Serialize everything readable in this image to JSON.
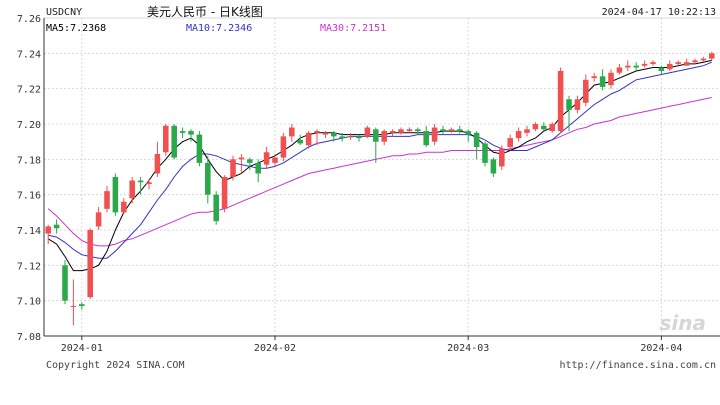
{
  "header": {
    "symbol": "USDCNY",
    "title": "美元人民币 - 日K线图",
    "datetime": "2024-04-17 10:22:13"
  },
  "legend": {
    "ma5": "MA5:7.2368",
    "ma10": "MA10:7.2346",
    "ma30": "MA30:7.2151"
  },
  "footer": {
    "copyright": "Copyright 2024 SINA.COM",
    "url": "http://finance.sina.com.cn",
    "watermark": "sina"
  },
  "colors": {
    "up": "#f05050",
    "down": "#2aa84a",
    "ma5": "#000000",
    "ma10": "#3333cc",
    "ma30": "#cc33cc",
    "grid": "#d8d8d8",
    "axis": "#333333"
  },
  "chart_data": {
    "type": "candlestick",
    "ylim": [
      7.08,
      7.26
    ],
    "yticks": [
      "7.08",
      "7.10",
      "7.12",
      "7.14",
      "7.16",
      "7.18",
      "7.20",
      "7.22",
      "7.24",
      "7.26"
    ],
    "xticks": [
      {
        "label": "2024-01",
        "index": 4
      },
      {
        "label": "2024-02",
        "index": 27
      },
      {
        "label": "2024-03",
        "index": 50
      },
      {
        "label": "2024-04",
        "index": 73
      }
    ],
    "candles": [
      [
        7.138,
        7.142,
        7.143,
        7.132
      ],
      [
        7.143,
        7.141,
        7.146,
        7.138
      ],
      [
        7.12,
        7.1,
        7.123,
        7.098
      ],
      [
        7.097,
        7.097,
        7.112,
        7.086
      ],
      [
        7.098,
        7.097,
        7.099,
        7.095
      ],
      [
        7.102,
        7.14,
        7.141,
        7.101
      ],
      [
        7.142,
        7.15,
        7.153,
        7.14
      ],
      [
        7.152,
        7.162,
        7.165,
        7.15
      ],
      [
        7.17,
        7.15,
        7.172,
        7.148
      ],
      [
        7.15,
        7.156,
        7.158,
        7.149
      ],
      [
        7.158,
        7.168,
        7.17,
        7.155
      ],
      [
        7.168,
        7.167,
        7.17,
        7.16
      ],
      [
        7.166,
        7.167,
        7.169,
        7.163
      ],
      [
        7.172,
        7.183,
        7.19,
        7.17
      ],
      [
        7.184,
        7.199,
        7.2,
        7.182
      ],
      [
        7.199,
        7.181,
        7.2,
        7.18
      ],
      [
        7.196,
        7.195,
        7.198,
        7.192
      ],
      [
        7.196,
        7.194,
        7.197,
        7.19
      ],
      [
        7.194,
        7.178,
        7.196,
        7.176
      ],
      [
        7.178,
        7.16,
        7.182,
        7.155
      ],
      [
        7.16,
        7.145,
        7.162,
        7.143
      ],
      [
        7.152,
        7.17,
        7.171,
        7.15
      ],
      [
        7.17,
        7.18,
        7.182,
        7.168
      ],
      [
        7.18,
        7.181,
        7.183,
        7.172
      ],
      [
        7.18,
        7.178,
        7.181,
        7.174
      ],
      [
        7.178,
        7.172,
        7.18,
        7.167
      ],
      [
        7.177,
        7.184,
        7.187,
        7.175
      ],
      [
        7.178,
        7.181,
        7.183,
        7.176
      ],
      [
        7.181,
        7.193,
        7.195,
        7.179
      ],
      [
        7.193,
        7.198,
        7.2,
        7.19
      ],
      [
        7.191,
        7.189,
        7.194,
        7.188
      ],
      [
        7.188,
        7.195,
        7.196,
        7.186
      ],
      [
        7.195,
        7.196,
        7.197,
        7.188
      ],
      [
        7.194,
        7.195,
        7.196,
        7.192
      ],
      [
        7.195,
        7.193,
        7.196,
        7.19
      ],
      [
        7.193,
        7.192,
        7.195,
        7.19
      ],
      [
        7.193,
        7.193,
        7.195,
        7.191
      ],
      [
        7.193,
        7.192,
        7.194,
        7.19
      ],
      [
        7.193,
        7.198,
        7.199,
        7.192
      ],
      [
        7.197,
        7.19,
        7.198,
        7.178
      ],
      [
        7.19,
        7.196,
        7.197,
        7.188
      ],
      [
        7.195,
        7.196,
        7.197,
        7.193
      ],
      [
        7.195,
        7.197,
        7.198,
        7.194
      ],
      [
        7.196,
        7.197,
        7.198,
        7.195
      ],
      [
        7.197,
        7.196,
        7.198,
        7.194
      ],
      [
        7.196,
        7.188,
        7.199,
        7.187
      ],
      [
        7.19,
        7.198,
        7.2,
        7.188
      ],
      [
        7.197,
        7.196,
        7.199,
        7.194
      ],
      [
        7.196,
        7.197,
        7.198,
        7.195
      ],
      [
        7.197,
        7.196,
        7.199,
        7.194
      ],
      [
        7.196,
        7.194,
        7.197,
        7.19
      ],
      [
        7.195,
        7.187,
        7.196,
        7.18
      ],
      [
        7.189,
        7.178,
        7.19,
        7.176
      ],
      [
        7.18,
        7.172,
        7.181,
        7.17
      ],
      [
        7.176,
        7.186,
        7.188,
        7.174
      ],
      [
        7.187,
        7.192,
        7.194,
        7.185
      ],
      [
        7.192,
        7.196,
        7.198,
        7.19
      ],
      [
        7.195,
        7.197,
        7.199,
        7.193
      ],
      [
        7.197,
        7.2,
        7.201,
        7.196
      ],
      [
        7.199,
        7.197,
        7.201,
        7.196
      ],
      [
        7.196,
        7.2,
        7.201,
        7.195
      ],
      [
        7.196,
        7.23,
        7.232,
        7.195
      ],
      [
        7.214,
        7.208,
        7.216,
        7.196
      ],
      [
        7.208,
        7.214,
        7.216,
        7.206
      ],
      [
        7.212,
        7.225,
        7.228,
        7.21
      ],
      [
        7.226,
        7.227,
        7.229,
        7.224
      ],
      [
        7.227,
        7.221,
        7.231,
        7.219
      ],
      [
        7.222,
        7.229,
        7.231,
        7.22
      ],
      [
        7.229,
        7.232,
        7.234,
        7.228
      ],
      [
        7.232,
        7.233,
        7.236,
        7.23
      ],
      [
        7.233,
        7.232,
        7.235,
        7.23
      ],
      [
        7.233,
        7.234,
        7.236,
        7.232
      ],
      [
        7.234,
        7.235,
        7.236,
        7.233
      ],
      [
        7.232,
        7.23,
        7.233,
        7.228
      ],
      [
        7.231,
        7.234,
        7.236,
        7.23
      ],
      [
        7.234,
        7.235,
        7.236,
        7.233
      ],
      [
        7.233,
        7.235,
        7.237,
        7.233
      ],
      [
        7.235,
        7.236,
        7.237,
        7.234
      ],
      [
        7.236,
        7.237,
        7.238,
        7.235
      ],
      [
        7.237,
        7.24,
        7.241,
        7.236
      ]
    ],
    "ma5": [
      7.135,
      7.132,
      7.125,
      7.117,
      7.117,
      7.118,
      7.12,
      7.128,
      7.14,
      7.15,
      7.157,
      7.162,
      7.168,
      7.175,
      7.18,
      7.186,
      7.19,
      7.192,
      7.188,
      7.18,
      7.173,
      7.168,
      7.17,
      7.172,
      7.176,
      7.178,
      7.18,
      7.182,
      7.185,
      7.188,
      7.192,
      7.194,
      7.195,
      7.195,
      7.195,
      7.194,
      7.194,
      7.194,
      7.194,
      7.194,
      7.194,
      7.195,
      7.195,
      7.195,
      7.195,
      7.195,
      7.195,
      7.196,
      7.196,
      7.196,
      7.195,
      7.192,
      7.188,
      7.184,
      7.183,
      7.185,
      7.187,
      7.19,
      7.192,
      7.196,
      7.198,
      7.204,
      7.208,
      7.212,
      7.217,
      7.222,
      7.223,
      7.224,
      7.226,
      7.228,
      7.23,
      7.231,
      7.232,
      7.232,
      7.232,
      7.233,
      7.234,
      7.234,
      7.235,
      7.236
    ],
    "ma10": [
      7.137,
      7.136,
      7.133,
      7.129,
      7.126,
      7.125,
      7.124,
      7.124,
      7.128,
      7.133,
      7.138,
      7.143,
      7.15,
      7.157,
      7.163,
      7.17,
      7.176,
      7.18,
      7.183,
      7.183,
      7.182,
      7.18,
      7.178,
      7.177,
      7.176,
      7.175,
      7.175,
      7.176,
      7.178,
      7.181,
      7.184,
      7.187,
      7.189,
      7.19,
      7.191,
      7.192,
      7.193,
      7.193,
      7.193,
      7.193,
      7.193,
      7.193,
      7.193,
      7.193,
      7.194,
      7.194,
      7.194,
      7.194,
      7.194,
      7.194,
      7.194,
      7.193,
      7.191,
      7.188,
      7.186,
      7.185,
      7.185,
      7.185,
      7.187,
      7.189,
      7.191,
      7.195,
      7.199,
      7.203,
      7.207,
      7.211,
      7.214,
      7.217,
      7.219,
      7.222,
      7.225,
      7.226,
      7.227,
      7.228,
      7.229,
      7.23,
      7.231,
      7.232,
      7.233,
      7.235
    ],
    "ma30": [
      7.152,
      7.148,
      7.143,
      7.138,
      7.134,
      7.132,
      7.131,
      7.131,
      7.132,
      7.134,
      7.135,
      7.137,
      7.139,
      7.141,
      7.143,
      7.145,
      7.147,
      7.149,
      7.15,
      7.15,
      7.151,
      7.152,
      7.154,
      7.156,
      7.158,
      7.16,
      7.162,
      7.164,
      7.166,
      7.168,
      7.17,
      7.172,
      7.173,
      7.174,
      7.175,
      7.176,
      7.177,
      7.178,
      7.179,
      7.18,
      7.181,
      7.182,
      7.182,
      7.183,
      7.183,
      7.184,
      7.184,
      7.184,
      7.185,
      7.185,
      7.185,
      7.185,
      7.185,
      7.185,
      7.185,
      7.186,
      7.187,
      7.188,
      7.189,
      7.19,
      7.191,
      7.193,
      7.195,
      7.197,
      7.198,
      7.2,
      7.201,
      7.202,
      7.204,
      7.205,
      7.206,
      7.207,
      7.208,
      7.209,
      7.21,
      7.211,
      7.212,
      7.213,
      7.214,
      7.215
    ]
  }
}
